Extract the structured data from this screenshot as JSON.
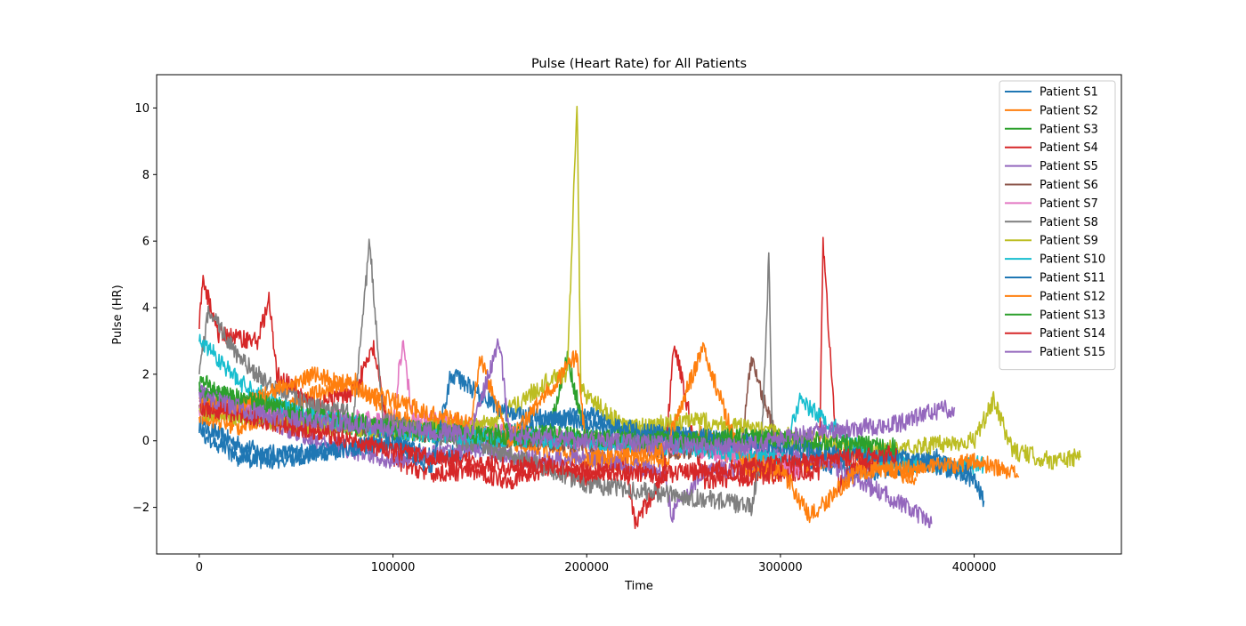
{
  "chart_data": {
    "type": "line",
    "title": "Pulse (Heart Rate) for All Patients",
    "xlabel": "Time",
    "ylabel": "Pulse (HR)",
    "xlim": [
      -22000,
      476000
    ],
    "ylim": [
      -3.4,
      11.0
    ],
    "xticks": [
      0,
      100000,
      200000,
      300000,
      400000
    ],
    "xtick_labels": [
      "0",
      "100000",
      "200000",
      "300000",
      "400000"
    ],
    "yticks": [
      -2,
      0,
      2,
      4,
      6,
      8,
      10
    ],
    "ytick_labels": [
      "−2",
      "0",
      "2",
      "4",
      "6",
      "8",
      "10"
    ],
    "grid": false,
    "legend_position": "upper right",
    "series": [
      {
        "name": "Patient S1",
        "color": "#1f77b4",
        "x": [
          0,
          10000,
          20000,
          30000,
          40000,
          60000,
          80000,
          100000,
          120000,
          140000,
          160000,
          180000,
          200000,
          220000,
          240000,
          260000,
          280000,
          300000,
          320000,
          340000,
          360000,
          380000,
          400000,
          405000
        ],
        "y": [
          0.5,
          0.2,
          -0.1,
          -0.3,
          -0.4,
          -0.3,
          -0.2,
          0.0,
          -0.5,
          -0.3,
          0.2,
          0.6,
          0.8,
          0.4,
          0.2,
          0.0,
          -0.2,
          -0.5,
          -0.6,
          -1.0,
          -0.8,
          -0.5,
          -1.2,
          -1.8
        ]
      },
      {
        "name": "Patient S2",
        "color": "#ff7f0e",
        "x": [
          0,
          20000,
          40000,
          60000,
          80000,
          100000,
          120000,
          140000,
          160000,
          180000,
          200000,
          220000,
          240000,
          260000,
          280000,
          300000,
          320000,
          340000,
          360000,
          370000
        ],
        "y": [
          0.8,
          0.4,
          0.9,
          1.4,
          1.8,
          0.7,
          0.4,
          0.2,
          0.0,
          -0.3,
          -0.6,
          -0.7,
          -0.6,
          0.3,
          -0.8,
          -1.0,
          -0.6,
          -0.4,
          -0.9,
          -1.2
        ]
      },
      {
        "name": "Patient S3",
        "color": "#2ca02c",
        "x": [
          0,
          10000,
          20000,
          40000,
          60000,
          80000,
          100000,
          120000,
          140000,
          160000,
          180000,
          190000,
          200000,
          220000,
          240000,
          260000,
          280000,
          300000,
          320000
        ],
        "y": [
          1.8,
          1.5,
          1.2,
          0.9,
          0.6,
          0.4,
          0.3,
          0.2,
          0.1,
          0.3,
          0.1,
          2.5,
          0.0,
          0.2,
          0.1,
          -0.2,
          0.0,
          0.1,
          -0.3
        ]
      },
      {
        "name": "Patient S4",
        "color": "#d62728",
        "x": [
          0,
          2000,
          10000,
          20000,
          30000,
          36000,
          40000,
          60000,
          80000,
          90000,
          100000,
          120000,
          140000,
          160000,
          180000,
          200000,
          220000,
          225000,
          240000,
          245000,
          260000,
          280000,
          300000,
          320000,
          322000,
          330000,
          340000,
          360000
        ],
        "y": [
          3.5,
          4.8,
          3.2,
          3.1,
          3.0,
          4.2,
          2.0,
          1.0,
          1.5,
          2.8,
          -0.6,
          -1.0,
          -0.9,
          -1.2,
          -0.8,
          -1.1,
          -0.7,
          -2.5,
          -1.0,
          3.0,
          -1.2,
          -1.1,
          -1.0,
          -0.9,
          6.0,
          -1.3,
          -0.8,
          -0.5
        ]
      },
      {
        "name": "Patient S5",
        "color": "#9467bd",
        "x": [
          0,
          20000,
          40000,
          60000,
          80000,
          100000,
          120000,
          140000,
          160000,
          180000,
          200000,
          220000,
          240000,
          244000,
          260000,
          280000,
          300000,
          320000,
          340000,
          360000,
          378000
        ],
        "y": [
          1.5,
          1.0,
          0.5,
          0.0,
          -0.3,
          -0.6,
          -0.4,
          -0.2,
          -0.5,
          -0.6,
          -0.5,
          -0.7,
          -1.0,
          -2.2,
          -0.9,
          -0.8,
          -0.2,
          -0.5,
          -1.2,
          -1.8,
          -2.5
        ]
      },
      {
        "name": "Patient S6",
        "color": "#8c564b",
        "x": [
          0,
          50000,
          100000,
          150000,
          200000,
          250000,
          280000,
          285000,
          300000
        ],
        "y": [
          1.2,
          0.6,
          0.3,
          0.1,
          -0.1,
          -0.3,
          -0.2,
          2.5,
          -0.4
        ]
      },
      {
        "name": "Patient S7",
        "color": "#e377c2",
        "x": [
          0,
          50000,
          100000,
          105000,
          110000,
          150000,
          200000,
          250000,
          300000,
          310000
        ],
        "y": [
          1.0,
          0.8,
          0.6,
          3.0,
          0.7,
          0.3,
          0.0,
          -0.2,
          -0.6,
          -0.9
        ]
      },
      {
        "name": "Patient S8",
        "color": "#7f7f7f",
        "x": [
          0,
          5000,
          20000,
          40000,
          60000,
          80000,
          88000,
          95000,
          120000,
          160000,
          200000,
          240000,
          270000,
          285000,
          290000,
          294000,
          296000
        ],
        "y": [
          2.0,
          4.0,
          2.5,
          1.5,
          1.0,
          0.8,
          6.0,
          0.6,
          0.2,
          -0.4,
          -1.3,
          -1.6,
          -1.8,
          -2.0,
          -0.5,
          5.5,
          -0.6
        ]
      },
      {
        "name": "Patient S9",
        "color": "#bcbd22",
        "x": [
          0,
          50000,
          100000,
          150000,
          180000,
          190000,
          193000,
          195000,
          197000,
          220000,
          260000,
          300000,
          350000,
          400000,
          410000,
          420000,
          440000,
          455000
        ],
        "y": [
          0.9,
          0.5,
          0.3,
          0.5,
          1.8,
          2.0,
          7.0,
          10.3,
          1.5,
          0.4,
          0.6,
          0.2,
          -0.3,
          0.0,
          1.2,
          -0.3,
          -0.6,
          -0.5
        ]
      },
      {
        "name": "Patient S10",
        "color": "#17becf",
        "x": [
          0,
          5000,
          20000,
          50000,
          100000,
          150000,
          200000,
          250000,
          300000,
          310000,
          350000,
          390000,
          405000
        ],
        "y": [
          3.0,
          2.8,
          1.8,
          0.8,
          0.3,
          0.1,
          0.0,
          -0.2,
          -0.5,
          1.2,
          -0.6,
          -0.8,
          -0.7
        ]
      },
      {
        "name": "Patient S11",
        "color": "#1f77b4",
        "x": [
          0,
          20000,
          40000,
          60000,
          80000,
          100000,
          120000,
          130000,
          160000,
          200000,
          240000,
          280000,
          320000,
          360000,
          400000
        ],
        "y": [
          0.3,
          -0.5,
          -0.6,
          -0.4,
          -0.2,
          0.0,
          -0.8,
          2.0,
          0.8,
          0.5,
          0.2,
          0.0,
          -0.3,
          -0.5,
          -1.0
        ]
      },
      {
        "name": "Patient S12",
        "color": "#ff7f0e",
        "x": [
          0,
          20000,
          40000,
          60000,
          80000,
          100000,
          120000,
          140000,
          145000,
          160000,
          195000,
          200000,
          240000,
          260000,
          280000,
          300000,
          315000,
          340000,
          380000,
          400000,
          420000,
          423000
        ],
        "y": [
          1.2,
          1.0,
          1.5,
          2.0,
          1.6,
          1.2,
          0.8,
          0.5,
          2.5,
          0.0,
          2.6,
          -0.5,
          -0.3,
          2.8,
          -0.6,
          -0.8,
          -2.3,
          -0.9,
          -0.8,
          -0.6,
          -1.0,
          -1.1
        ]
      },
      {
        "name": "Patient S13",
        "color": "#2ca02c",
        "x": [
          0,
          20000,
          40000,
          60000,
          80000,
          100000,
          120000,
          140000,
          160000,
          180000,
          200000,
          240000,
          280000,
          320000,
          360000
        ],
        "y": [
          1.5,
          1.3,
          1.0,
          0.7,
          0.6,
          0.4,
          0.3,
          0.2,
          0.1,
          0.2,
          0.1,
          0.0,
          0.1,
          0.0,
          -0.2
        ]
      },
      {
        "name": "Patient S14",
        "color": "#d62728",
        "x": [
          0,
          20000,
          40000,
          60000,
          80000,
          100000,
          120000,
          140000,
          160000,
          180000,
          200000,
          240000,
          280000,
          320000,
          360000
        ],
        "y": [
          1.0,
          0.8,
          0.5,
          0.3,
          0.0,
          -0.3,
          -0.5,
          -0.6,
          -0.8,
          -0.7,
          -0.9,
          -1.0,
          -0.8,
          -0.6,
          -0.4
        ]
      },
      {
        "name": "Patient S15",
        "color": "#9467bd",
        "x": [
          0,
          20000,
          40000,
          60000,
          80000,
          100000,
          120000,
          140000,
          155000,
          160000,
          200000,
          240000,
          280000,
          320000,
          360000,
          380000,
          390000
        ],
        "y": [
          1.4,
          1.0,
          0.7,
          0.6,
          0.5,
          0.4,
          0.3,
          0.2,
          3.0,
          0.2,
          0.0,
          -0.1,
          -0.2,
          0.3,
          0.5,
          0.9,
          1.0
        ]
      }
    ]
  }
}
